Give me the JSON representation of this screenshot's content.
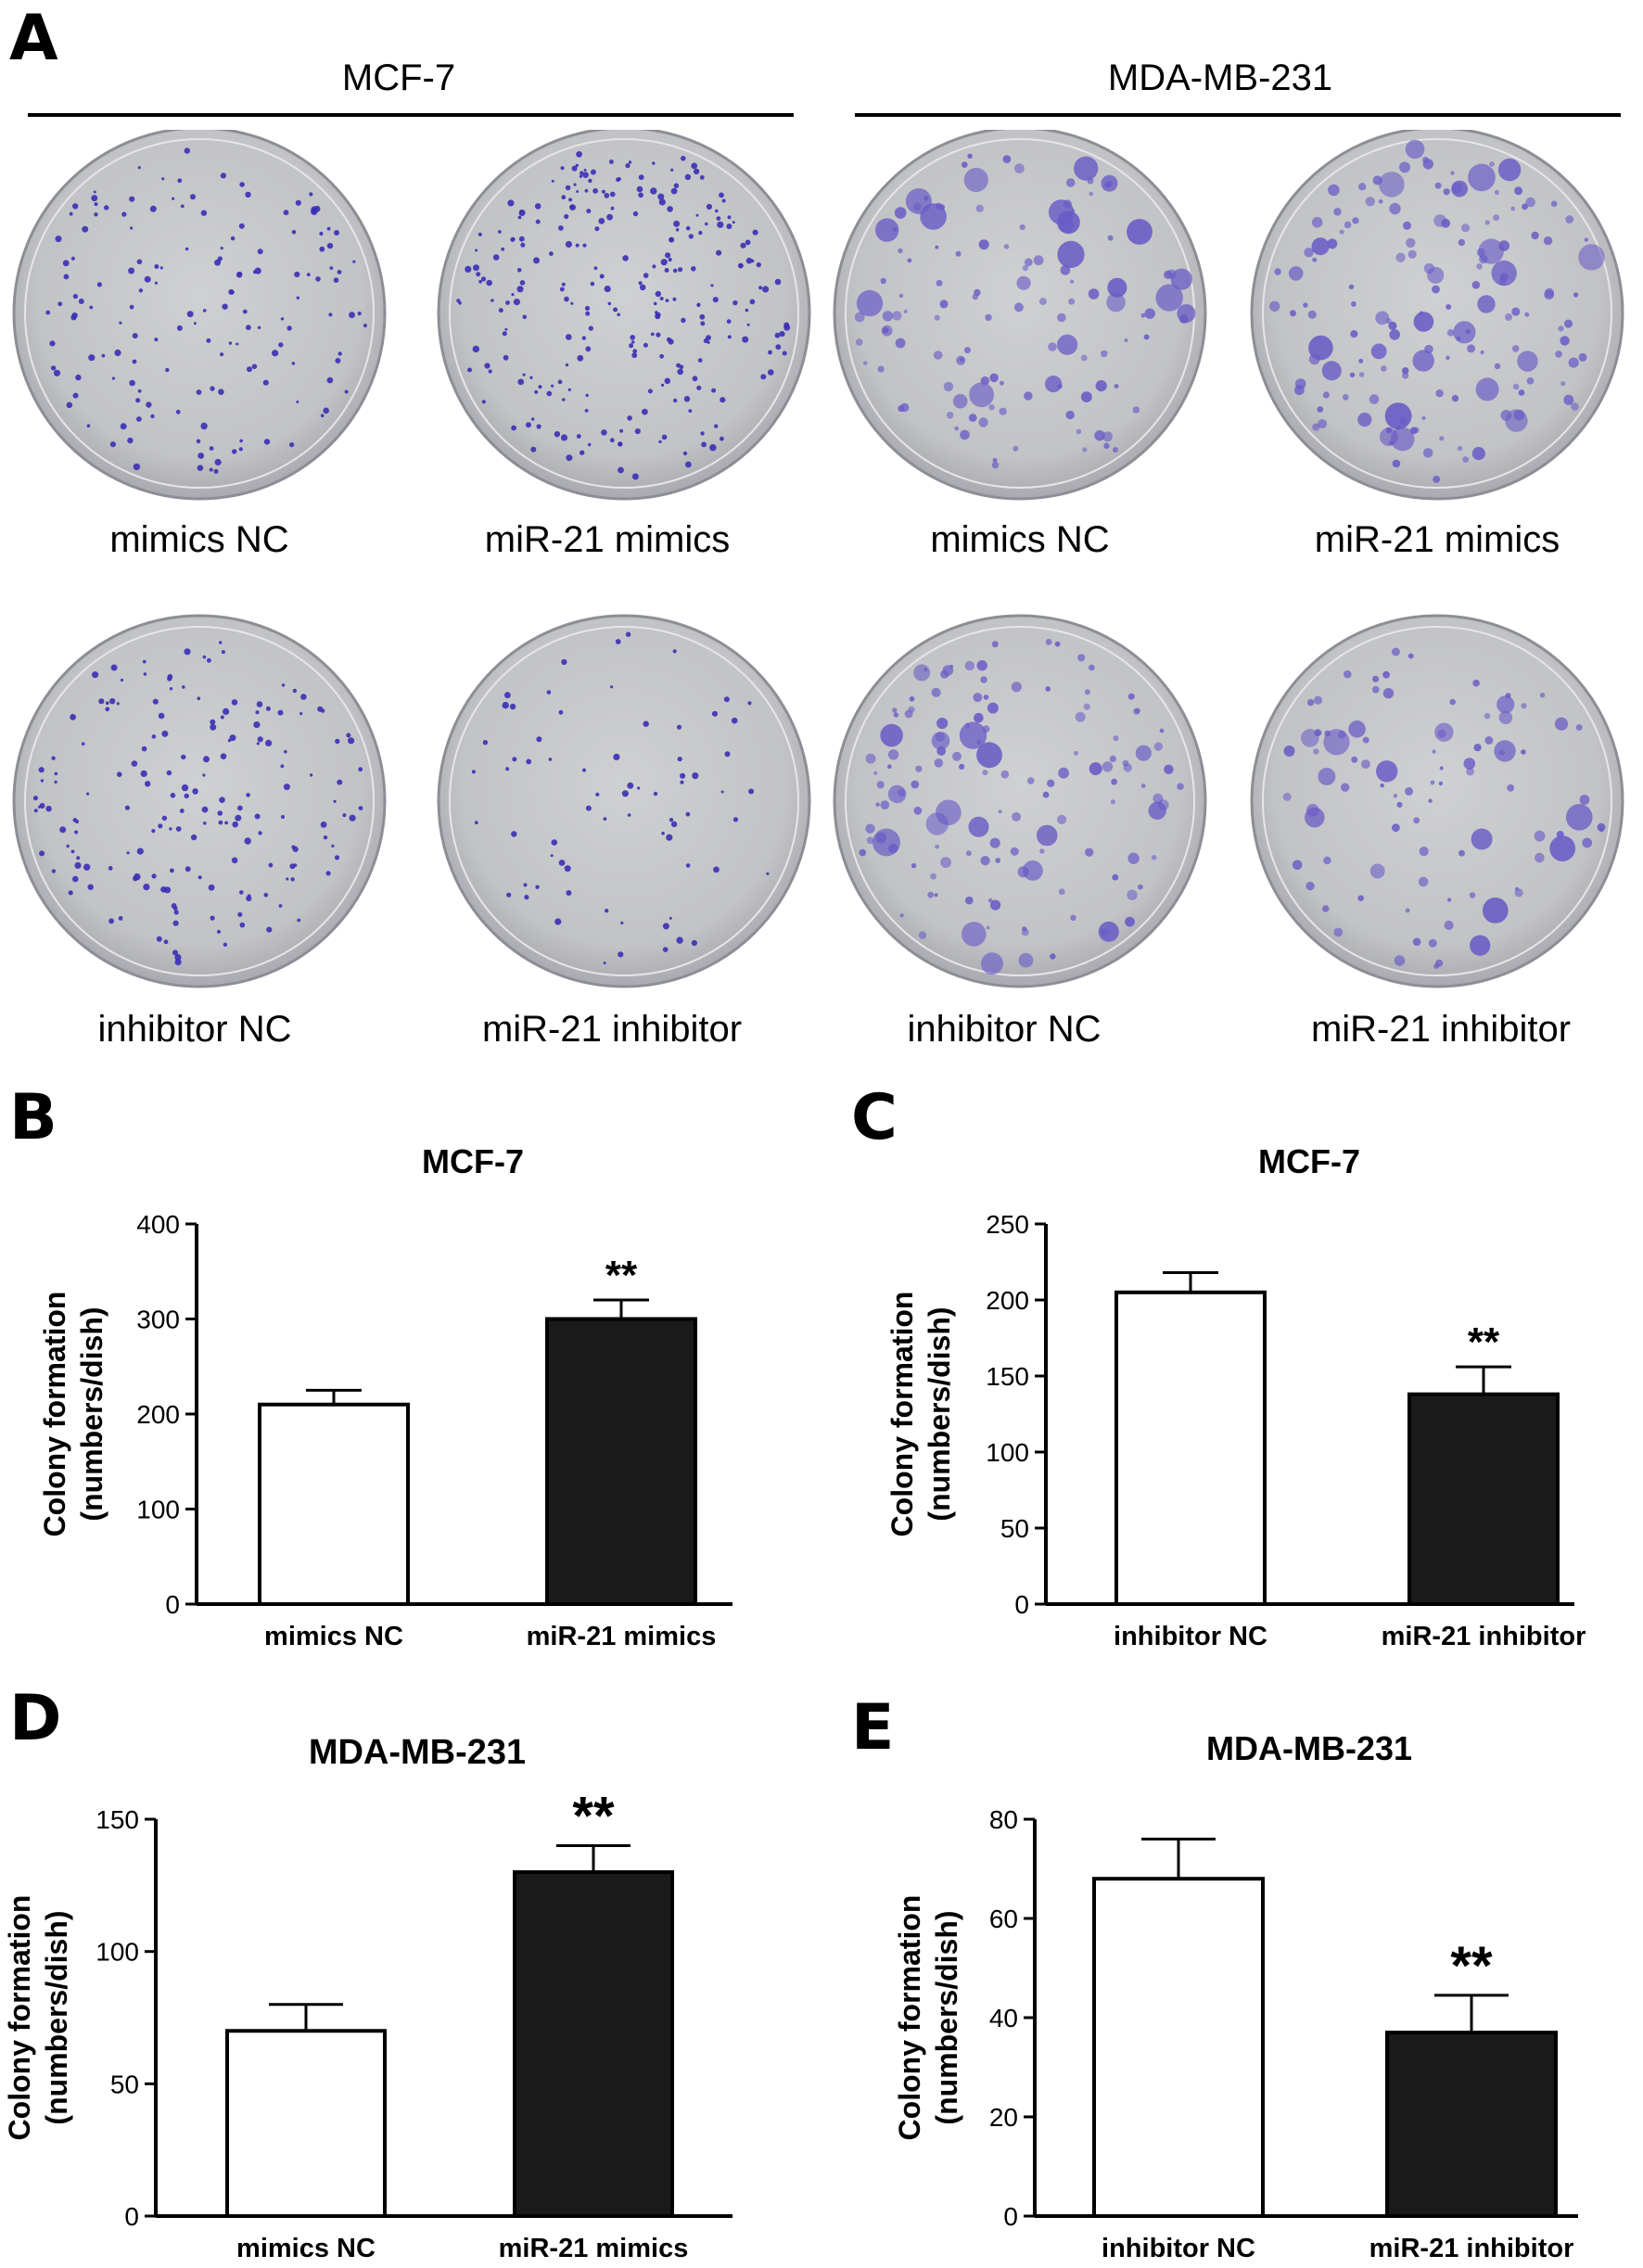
{
  "panel_a": {
    "letter": "A",
    "groups": [
      {
        "title": "MCF-7",
        "dish_color": "#3a2fb5"
      },
      {
        "title": "MDA-MB-231",
        "dish_color": "#6a5bc6"
      }
    ],
    "rows": [
      [
        "mimics NC",
        "miR-21 mimics",
        "mimics NC",
        "miR-21 mimics"
      ],
      [
        "inhibitor NC",
        "miR-21 inhibitor",
        "inhibitor NC",
        "miR-21 inhibitor"
      ]
    ]
  },
  "chart_data": [
    {
      "panel": "B",
      "type": "bar",
      "title": "MCF-7",
      "ylabel": "Colony formation",
      "ylabel2": "(numbers/dish)",
      "categories": [
        "mimics NC",
        "miR-21 mimics"
      ],
      "values": [
        210,
        300
      ],
      "errors": [
        15,
        20
      ],
      "colors": [
        "#ffffff",
        "#1a1a1a"
      ],
      "ylim": [
        0,
        400
      ],
      "yticks": [
        0,
        100,
        200,
        300,
        400
      ],
      "significance": [
        "",
        "**"
      ]
    },
    {
      "panel": "C",
      "type": "bar",
      "title": "MCF-7",
      "ylabel": "Colony formation",
      "ylabel2": "(numbers/dish)",
      "categories": [
        "inhibitor NC",
        "miR-21 inhibitor"
      ],
      "values": [
        205,
        138
      ],
      "errors": [
        13,
        18
      ],
      "colors": [
        "#ffffff",
        "#1a1a1a"
      ],
      "ylim": [
        0,
        250
      ],
      "yticks": [
        0,
        50,
        100,
        150,
        200,
        250
      ],
      "significance": [
        "",
        "**"
      ]
    },
    {
      "panel": "D",
      "type": "bar",
      "title": "MDA-MB-231",
      "ylabel": "Colony formation",
      "ylabel2": "(numbers/dish)",
      "categories": [
        "mimics NC",
        "miR-21 mimics"
      ],
      "values": [
        70,
        130
      ],
      "errors": [
        10,
        10
      ],
      "colors": [
        "#ffffff",
        "#1a1a1a"
      ],
      "ylim": [
        0,
        150
      ],
      "yticks": [
        0,
        50,
        100,
        150
      ],
      "significance": [
        "",
        "**"
      ]
    },
    {
      "panel": "E",
      "type": "bar",
      "title": "MDA-MB-231",
      "ylabel": "Colony formation",
      "ylabel2": "(numbers/dish)",
      "categories": [
        "inhibitor NC",
        "miR-21 inhibitor"
      ],
      "values": [
        68,
        37
      ],
      "errors": [
        8,
        7.5
      ],
      "colors": [
        "#ffffff",
        "#1a1a1a"
      ],
      "ylim": [
        0,
        80
      ],
      "yticks": [
        0,
        20,
        40,
        60,
        80
      ],
      "significance": [
        "",
        "**"
      ]
    }
  ]
}
